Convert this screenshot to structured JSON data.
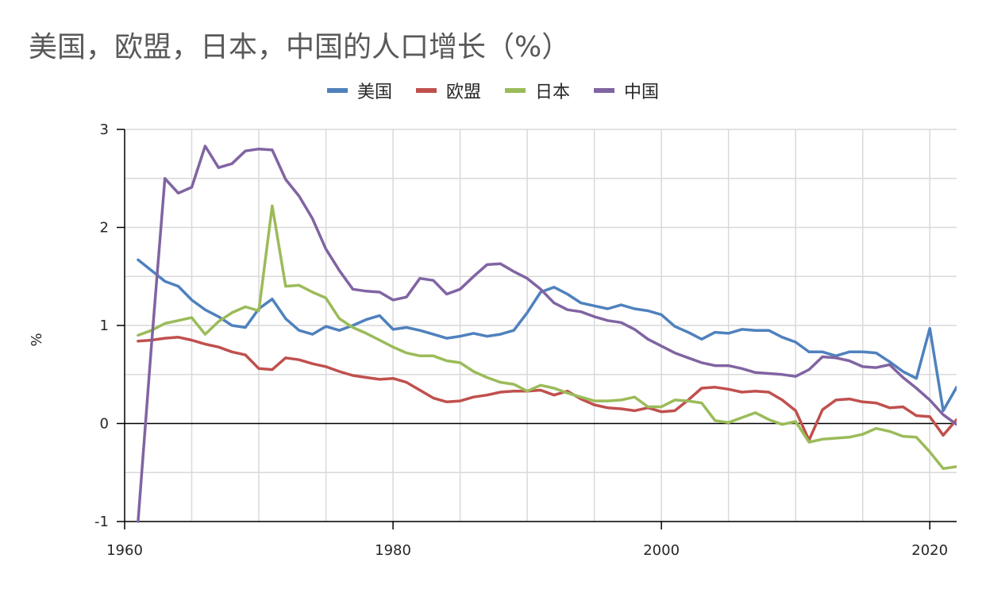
{
  "chart_data": {
    "type": "line",
    "title": "美国，欧盟，日本，中国的人口增长（%）",
    "xlabel": "",
    "ylabel": "%",
    "xlim": [
      1960,
      2022
    ],
    "ylim": [
      -1,
      3
    ],
    "x_ticks": [
      1960,
      1980,
      2000,
      2020
    ],
    "y_ticks": [
      -1,
      0,
      1,
      2,
      3
    ],
    "grid": true,
    "legend_position": "top-center",
    "x": [
      1961,
      1962,
      1963,
      1964,
      1965,
      1966,
      1967,
      1968,
      1969,
      1970,
      1971,
      1972,
      1973,
      1974,
      1975,
      1976,
      1977,
      1978,
      1979,
      1980,
      1981,
      1982,
      1983,
      1984,
      1985,
      1986,
      1987,
      1988,
      1989,
      1990,
      1991,
      1992,
      1993,
      1994,
      1995,
      1996,
      1997,
      1998,
      1999,
      2000,
      2001,
      2002,
      2003,
      2004,
      2005,
      2006,
      2007,
      2008,
      2009,
      2010,
      2011,
      2012,
      2013,
      2014,
      2015,
      2016,
      2017,
      2018,
      2019,
      2020,
      2021,
      2022
    ],
    "series": [
      {
        "name": "美国",
        "color": "#4f81bd",
        "values": [
          1.67,
          1.56,
          1.45,
          1.4,
          1.26,
          1.16,
          1.09,
          1.0,
          0.98,
          1.17,
          1.27,
          1.07,
          0.95,
          0.91,
          0.99,
          0.95,
          1.0,
          1.06,
          1.1,
          0.96,
          0.98,
          0.95,
          0.91,
          0.87,
          0.89,
          0.92,
          0.89,
          0.91,
          0.95,
          1.13,
          1.34,
          1.39,
          1.32,
          1.23,
          1.2,
          1.17,
          1.21,
          1.17,
          1.15,
          1.11,
          0.99,
          0.93,
          0.86,
          0.93,
          0.92,
          0.96,
          0.95,
          0.95,
          0.88,
          0.83,
          0.73,
          0.73,
          0.69,
          0.73,
          0.73,
          0.72,
          0.63,
          0.53,
          0.46,
          0.97,
          0.13,
          0.37
        ]
      },
      {
        "name": "欧盟",
        "color": "#c0504d",
        "values": [
          0.84,
          0.85,
          0.87,
          0.88,
          0.85,
          0.81,
          0.78,
          0.73,
          0.7,
          0.56,
          0.55,
          0.67,
          0.65,
          0.61,
          0.58,
          0.53,
          0.49,
          0.47,
          0.45,
          0.46,
          0.42,
          0.34,
          0.26,
          0.22,
          0.23,
          0.27,
          0.29,
          0.32,
          0.33,
          0.33,
          0.34,
          0.29,
          0.33,
          0.25,
          0.19,
          0.16,
          0.15,
          0.13,
          0.16,
          0.12,
          0.13,
          0.24,
          0.36,
          0.37,
          0.35,
          0.32,
          0.33,
          0.32,
          0.24,
          0.13,
          -0.17,
          0.14,
          0.24,
          0.25,
          0.22,
          0.21,
          0.16,
          0.17,
          0.08,
          0.07,
          -0.12,
          0.04
        ]
      },
      {
        "name": "日本",
        "color": "#9bbb59",
        "values": [
          0.9,
          0.95,
          1.02,
          1.05,
          1.08,
          0.91,
          1.04,
          1.13,
          1.19,
          1.15,
          2.22,
          1.4,
          1.41,
          1.34,
          1.28,
          1.07,
          0.98,
          0.92,
          0.85,
          0.78,
          0.72,
          0.69,
          0.69,
          0.64,
          0.62,
          0.53,
          0.47,
          0.42,
          0.4,
          0.33,
          0.39,
          0.36,
          0.31,
          0.27,
          0.23,
          0.23,
          0.24,
          0.27,
          0.17,
          0.17,
          0.24,
          0.23,
          0.21,
          0.03,
          0.01,
          0.06,
          0.11,
          0.04,
          -0.01,
          0.02,
          -0.19,
          -0.16,
          -0.15,
          -0.14,
          -0.11,
          -0.05,
          -0.08,
          -0.13,
          -0.14,
          -0.29,
          -0.46,
          -0.44
        ]
      },
      {
        "name": "中国",
        "color": "#8064a2",
        "values": [
          -1.0,
          0.8,
          2.5,
          2.35,
          2.41,
          2.83,
          2.61,
          2.65,
          2.78,
          2.8,
          2.79,
          2.49,
          2.32,
          2.09,
          1.78,
          1.56,
          1.37,
          1.35,
          1.34,
          1.26,
          1.29,
          1.48,
          1.46,
          1.32,
          1.37,
          1.5,
          1.62,
          1.63,
          1.55,
          1.48,
          1.37,
          1.23,
          1.16,
          1.14,
          1.09,
          1.05,
          1.03,
          0.96,
          0.86,
          0.79,
          0.72,
          0.67,
          0.62,
          0.59,
          0.59,
          0.56,
          0.52,
          0.51,
          0.5,
          0.48,
          0.55,
          0.68,
          0.67,
          0.64,
          0.58,
          0.57,
          0.6,
          0.47,
          0.36,
          0.24,
          0.09,
          -0.01
        ]
      }
    ]
  }
}
